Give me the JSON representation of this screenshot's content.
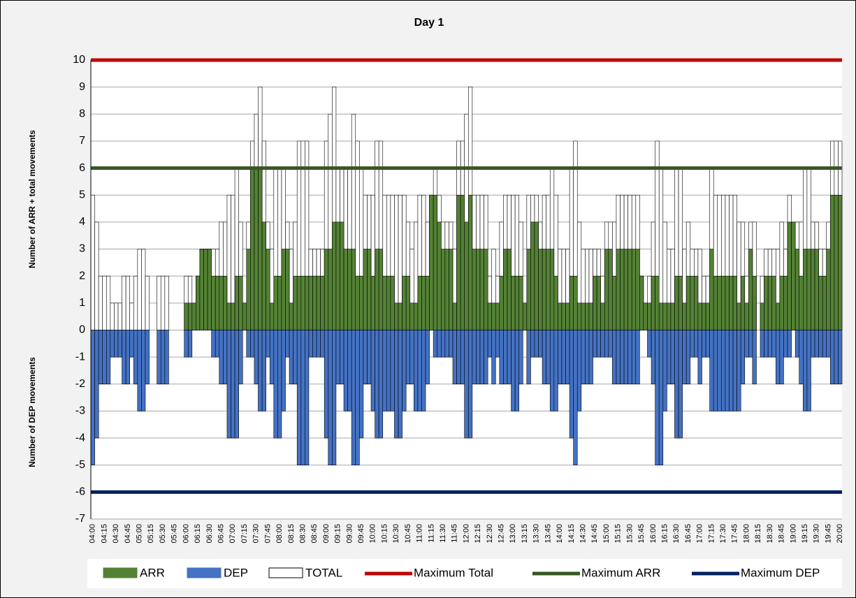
{
  "chart_data": {
    "type": "bar",
    "title": "Day 1",
    "y_axis_label_top": "Number of ARR + total movements",
    "y_axis_label_bottom": "Number of DEP movements",
    "categories": [
      "04:00",
      null,
      null,
      "04:15",
      null,
      null,
      "04:30",
      null,
      null,
      "04:45",
      null,
      null,
      "05:00",
      null,
      null,
      "05:15",
      null,
      null,
      "05:30",
      null,
      null,
      "05:45",
      null,
      null,
      "06:00",
      null,
      null,
      "06:15",
      null,
      null,
      "06:30",
      null,
      null,
      "06:45",
      null,
      null,
      "07:00",
      null,
      null,
      "07:15",
      null,
      null,
      "07:30",
      null,
      null,
      "07:45",
      null,
      null,
      "08:00",
      null,
      null,
      "08:15",
      null,
      null,
      "08:30",
      null,
      null,
      "08:45",
      null,
      null,
      "09:00",
      null,
      null,
      "09:15",
      null,
      null,
      "09:30",
      null,
      null,
      "09:45",
      null,
      null,
      "10:00",
      null,
      null,
      "10:15",
      null,
      null,
      "10:30",
      null,
      null,
      "10:45",
      null,
      null,
      "11:00",
      null,
      null,
      "11:15",
      null,
      null,
      "11:30",
      null,
      null,
      "11:45",
      null,
      null,
      "12:00",
      null,
      null,
      "12:15",
      null,
      null,
      "12:30",
      null,
      null,
      "12:45",
      null,
      null,
      "13:00",
      null,
      null,
      "13:15",
      null,
      null,
      "13:30",
      null,
      null,
      "13:45",
      null,
      null,
      "14:00",
      null,
      null,
      "14:15",
      null,
      null,
      "14:30",
      null,
      null,
      "14:45",
      null,
      null,
      "15:00",
      null,
      null,
      "15:15",
      null,
      null,
      "15:30",
      null,
      null,
      "15:45",
      null,
      null,
      "16:00",
      null,
      null,
      "16:15",
      null,
      null,
      "16:30",
      null,
      null,
      "16:45",
      null,
      null,
      "17:00",
      null,
      null,
      "17:15",
      null,
      null,
      "17:30",
      null,
      null,
      "17:45",
      null,
      null,
      "18:00",
      null,
      null,
      "18:15",
      null,
      null,
      "18:30",
      null,
      null,
      "18:45",
      null,
      null,
      "19:00",
      null,
      null,
      "19:15",
      null,
      null,
      "19:30",
      null,
      null,
      "19:45",
      null,
      null,
      "20:00"
    ],
    "series": [
      {
        "name": "TOTAL",
        "color": "#ffffff",
        "values": [
          5,
          4,
          2,
          2,
          2,
          1,
          1,
          1,
          2,
          2,
          1,
          2,
          3,
          3,
          2,
          0,
          0,
          2,
          2,
          2,
          0,
          0,
          0,
          0,
          2,
          2,
          1,
          2,
          3,
          3,
          3,
          3,
          3,
          4,
          4,
          5,
          5,
          6,
          4,
          1,
          4,
          7,
          8,
          9,
          7,
          4,
          3,
          6,
          6,
          6,
          4,
          3,
          4,
          7,
          7,
          7,
          3,
          3,
          3,
          3,
          7,
          8,
          9,
          6,
          6,
          6,
          6,
          8,
          7,
          6,
          5,
          5,
          5,
          7,
          7,
          5,
          5,
          5,
          5,
          5,
          5,
          4,
          3,
          4,
          5,
          5,
          4,
          5,
          6,
          5,
          4,
          4,
          4,
          3,
          7,
          7,
          8,
          9,
          5,
          5,
          5,
          5,
          2,
          3,
          2,
          4,
          5,
          5,
          5,
          5,
          4,
          1,
          5,
          5,
          5,
          4,
          5,
          5,
          6,
          5,
          3,
          3,
          3,
          6,
          7,
          4,
          3,
          3,
          3,
          3,
          3,
          2,
          4,
          4,
          4,
          5,
          5,
          5,
          5,
          5,
          5,
          2,
          1,
          2,
          4,
          7,
          6,
          4,
          3,
          3,
          6,
          6,
          3,
          4,
          3,
          3,
          3,
          2,
          2,
          6,
          5,
          5,
          5,
          5,
          5,
          5,
          4,
          4,
          2,
          4,
          4,
          0,
          2,
          3,
          3,
          3,
          3,
          4,
          3,
          5,
          4,
          4,
          4,
          6,
          6,
          4,
          4,
          3,
          3,
          4,
          7,
          7,
          7
        ]
      },
      {
        "name": "ARR",
        "color": "#548235",
        "values": [
          0,
          0,
          0,
          0,
          0,
          0,
          0,
          0,
          0,
          0,
          0,
          0,
          0,
          0,
          0,
          0,
          0,
          0,
          0,
          0,
          0,
          0,
          0,
          0,
          1,
          1,
          1,
          2,
          3,
          3,
          3,
          2,
          2,
          2,
          2,
          1,
          1,
          2,
          2,
          1,
          3,
          6,
          6,
          6,
          4,
          3,
          1,
          2,
          2,
          3,
          3,
          1,
          2,
          2,
          2,
          2,
          2,
          2,
          2,
          2,
          3,
          3,
          4,
          4,
          4,
          3,
          3,
          3,
          2,
          2,
          3,
          3,
          2,
          3,
          3,
          2,
          2,
          2,
          1,
          1,
          2,
          2,
          1,
          1,
          2,
          2,
          2,
          5,
          5,
          4,
          3,
          3,
          3,
          1,
          5,
          5,
          4,
          5,
          3,
          3,
          3,
          3,
          1,
          1,
          1,
          2,
          3,
          3,
          2,
          2,
          2,
          1,
          3,
          4,
          4,
          3,
          3,
          3,
          3,
          2,
          1,
          1,
          1,
          2,
          2,
          1,
          1,
          1,
          1,
          2,
          2,
          1,
          3,
          3,
          2,
          3,
          3,
          3,
          3,
          3,
          3,
          2,
          1,
          1,
          2,
          2,
          1,
          1,
          1,
          1,
          2,
          2,
          1,
          2,
          2,
          2,
          1,
          1,
          1,
          3,
          2,
          2,
          2,
          2,
          2,
          2,
          1,
          2,
          1,
          3,
          2,
          0,
          1,
          2,
          2,
          2,
          1,
          2,
          2,
          4,
          4,
          3,
          2,
          3,
          3,
          3,
          3,
          2,
          2,
          3,
          5,
          5,
          5
        ]
      },
      {
        "name": "DEP",
        "color": "#4472c4",
        "values": [
          -5,
          -4,
          -2,
          -2,
          -2,
          -1,
          -1,
          -1,
          -2,
          -2,
          -1,
          -2,
          -3,
          -3,
          -2,
          0,
          0,
          -2,
          -2,
          -2,
          0,
          0,
          0,
          0,
          -1,
          -1,
          0,
          0,
          0,
          0,
          0,
          -1,
          -1,
          -2,
          -2,
          -4,
          -4,
          -4,
          -2,
          0,
          -1,
          -1,
          -2,
          -3,
          -3,
          -1,
          -2,
          -4,
          -4,
          -3,
          -1,
          -2,
          -2,
          -5,
          -5,
          -5,
          -1,
          -1,
          -1,
          -1,
          -4,
          -5,
          -5,
          -2,
          -2,
          -3,
          -3,
          -5,
          -5,
          -4,
          -2,
          -2,
          -3,
          -4,
          -4,
          -3,
          -3,
          -3,
          -4,
          -4,
          -3,
          -2,
          -2,
          -3,
          -3,
          -3,
          -2,
          0,
          -1,
          -1,
          -1,
          -1,
          -1,
          -2,
          -2,
          -2,
          -4,
          -4,
          -2,
          -2,
          -2,
          -2,
          -1,
          -2,
          -1,
          -2,
          -2,
          -2,
          -3,
          -3,
          -2,
          0,
          -2,
          -1,
          -1,
          -1,
          -2,
          -2,
          -3,
          -3,
          -2,
          -2,
          -2,
          -4,
          -5,
          -3,
          -2,
          -2,
          -2,
          -1,
          -1,
          -1,
          -1,
          -1,
          -2,
          -2,
          -2,
          -2,
          -2,
          -2,
          -2,
          0,
          0,
          -1,
          -2,
          -5,
          -5,
          -3,
          -2,
          -2,
          -4,
          -4,
          -2,
          -2,
          -1,
          -1,
          -2,
          -1,
          -1,
          -3,
          -3,
          -3,
          -3,
          -3,
          -3,
          -3,
          -3,
          -2,
          -1,
          -1,
          -2,
          0,
          -1,
          -1,
          -1,
          -1,
          -2,
          -2,
          -1,
          -1,
          0,
          -1,
          -2,
          -3,
          -3,
          -1,
          -1,
          -1,
          -1,
          -1,
          -2,
          -2,
          -2
        ]
      }
    ],
    "limits": [
      {
        "name": "Maximum Total",
        "color": "#c00000",
        "value": 10
      },
      {
        "name": "Maximum ARR",
        "color": "#375623",
        "value": 6
      },
      {
        "name": "Maximum DEP",
        "color": "#002060",
        "value": -6
      }
    ],
    "ylim": [
      -7,
      10
    ],
    "yticks": [
      -7,
      -6,
      -5,
      -4,
      -3,
      -2,
      -1,
      0,
      1,
      2,
      3,
      4,
      5,
      6,
      7,
      8,
      9,
      10
    ],
    "grid": true
  }
}
